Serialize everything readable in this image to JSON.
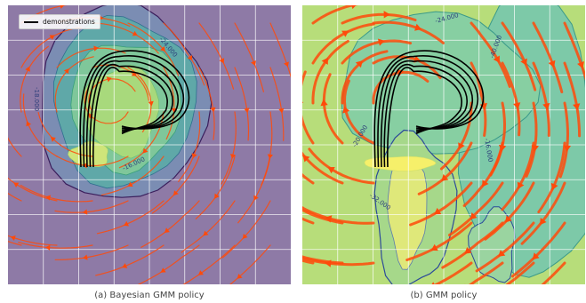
{
  "chart_data": [
    {
      "type": "streamplot",
      "caption": "(a) Bayesian GMM policy",
      "legend": {
        "label": "demonstrations",
        "placement": "top-left"
      },
      "contour_labels": [
        "-24.000",
        "-18.000",
        "-16.000"
      ],
      "grid": true,
      "colors": {
        "background": "#8e7aa6",
        "streamlines": "#ff4a0a",
        "demonstrations": "#000000"
      }
    },
    {
      "type": "streamplot",
      "caption": "(b) GMM policy",
      "contour_labels": [
        "-24.000",
        "-20.000",
        "-32.000",
        "-40.000",
        "-16.000"
      ],
      "grid": true,
      "colors": {
        "background": "#b7dd7a",
        "streamlines": "#ff4a0a",
        "demonstrations": "#000000"
      }
    }
  ]
}
